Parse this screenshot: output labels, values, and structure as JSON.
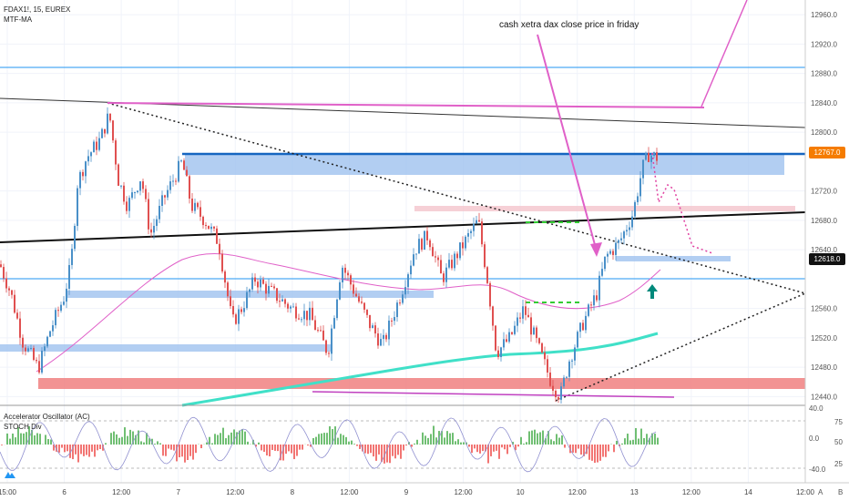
{
  "header": {
    "symbol_line": "FDAX1!, 15, EUREX",
    "indicator_line": "MTF-MA"
  },
  "annotation": "cash xetra dax close price in friday",
  "oscillator_legend": {
    "line1": "Accelerator Oscillator (AC)",
    "line2": "STOCH Div"
  },
  "price_tags": {
    "upper": "12767.0",
    "lower": "12618.0"
  },
  "colors": {
    "candle_up": "#4a90c8",
    "candle_down": "#e05050",
    "pink": "#e060c8",
    "blue_zone": "#9fc2ef",
    "red_zone": "#f08080",
    "aqua_ma": "#40e0c8",
    "dark_line": "#222222",
    "hline": "#2196f3",
    "tag_dark": "#111111",
    "tag_orange": "#f57c00"
  },
  "chart_data": {
    "type": "candlestick",
    "price_axis": {
      "ticks": [
        "12960.0",
        "12920.0",
        "12880.0",
        "12840.0",
        "12800.0",
        "12720.0",
        "12680.0",
        "12640.0",
        "12560.0",
        "12520.0",
        "12480.0",
        "12440.0"
      ],
      "range": [
        12428,
        12980
      ]
    },
    "time_axis": {
      "labels": [
        "15:00",
        "6",
        "12:00",
        "7",
        "12:00",
        "8",
        "12:00",
        "9",
        "12:00",
        "10",
        "12:00",
        "13",
        "12:00",
        "14",
        "12:00"
      ]
    },
    "oscillator_axis": {
      "ticks": [
        "75",
        "50",
        "25"
      ],
      "markers": [
        "40.0",
        "0.0",
        "-40.0"
      ]
    },
    "corner": [
      "A",
      "B"
    ],
    "anchors": [
      {
        "x": 0,
        "y": 12620
      },
      {
        "x": 12,
        "y": 12580
      },
      {
        "x": 25,
        "y": 12515
      },
      {
        "x": 42,
        "y": 12478
      },
      {
        "x": 55,
        "y": 12530
      },
      {
        "x": 70,
        "y": 12575
      },
      {
        "x": 78,
        "y": 12620
      },
      {
        "x": 85,
        "y": 12730
      },
      {
        "x": 95,
        "y": 12765
      },
      {
        "x": 110,
        "y": 12790
      },
      {
        "x": 120,
        "y": 12825
      },
      {
        "x": 130,
        "y": 12735
      },
      {
        "x": 140,
        "y": 12700
      },
      {
        "x": 155,
        "y": 12740
      },
      {
        "x": 165,
        "y": 12660
      },
      {
        "x": 180,
        "y": 12710
      },
      {
        "x": 200,
        "y": 12760
      },
      {
        "x": 210,
        "y": 12700
      },
      {
        "x": 225,
        "y": 12680
      },
      {
        "x": 240,
        "y": 12650
      },
      {
        "x": 255,
        "y": 12540
      },
      {
        "x": 265,
        "y": 12560
      },
      {
        "x": 280,
        "y": 12600
      },
      {
        "x": 300,
        "y": 12580
      },
      {
        "x": 320,
        "y": 12560
      },
      {
        "x": 340,
        "y": 12550
      },
      {
        "x": 360,
        "y": 12500
      },
      {
        "x": 375,
        "y": 12620
      },
      {
        "x": 390,
        "y": 12580
      },
      {
        "x": 405,
        "y": 12540
      },
      {
        "x": 420,
        "y": 12510
      },
      {
        "x": 440,
        "y": 12580
      },
      {
        "x": 455,
        "y": 12640
      },
      {
        "x": 470,
        "y": 12660
      },
      {
        "x": 485,
        "y": 12600
      },
      {
        "x": 500,
        "y": 12630
      },
      {
        "x": 515,
        "y": 12660
      },
      {
        "x": 525,
        "y": 12680
      },
      {
        "x": 535,
        "y": 12600
      },
      {
        "x": 545,
        "y": 12500
      },
      {
        "x": 560,
        "y": 12520
      },
      {
        "x": 575,
        "y": 12560
      },
      {
        "x": 590,
        "y": 12510
      },
      {
        "x": 605,
        "y": 12460
      },
      {
        "x": 615,
        "y": 12440
      },
      {
        "x": 625,
        "y": 12490
      },
      {
        "x": 640,
        "y": 12540
      },
      {
        "x": 655,
        "y": 12580
      },
      {
        "x": 665,
        "y": 12630
      },
      {
        "x": 680,
        "y": 12650
      },
      {
        "x": 695,
        "y": 12690
      },
      {
        "x": 705,
        "y": 12750
      },
      {
        "x": 712,
        "y": 12770
      },
      {
        "x": 722,
        "y": 12765
      }
    ]
  }
}
